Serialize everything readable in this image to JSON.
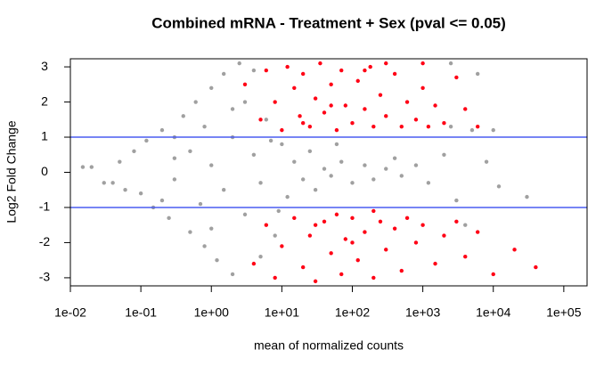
{
  "chart_data": {
    "type": "scatter",
    "title": "Combined mRNA - Treatment + Sex  (pval <= 0.05)",
    "x_label": "mean of normalized counts",
    "y_label": "Log2 Fold Change",
    "xlog": true,
    "xlim": [
      0.01,
      214000
    ],
    "ylim": [
      -3.23,
      3.23
    ],
    "xticks": [
      {
        "value": 0.01,
        "label": "1e-02"
      },
      {
        "value": 0.1,
        "label": "1e-01"
      },
      {
        "value": 1,
        "label": "1e+00"
      },
      {
        "value": 10,
        "label": "1e+01"
      },
      {
        "value": 100,
        "label": "1e+02"
      },
      {
        "value": 1000,
        "label": "1e+03"
      },
      {
        "value": 10000,
        "label": "1e+04"
      },
      {
        "value": 100000,
        "label": "1e+05"
      }
    ],
    "yticks": [
      -3,
      -2,
      -1,
      0,
      1,
      2,
      3
    ],
    "hlines": [
      1,
      -1
    ],
    "hline_color": "#4a5df0",
    "series": [
      {
        "color": "#a0a0a0",
        "x": [
          0.015,
          0.02,
          0.03,
          0.04,
          0.05,
          0.06,
          0.08,
          0.1,
          0.12,
          0.15,
          0.2,
          0.25,
          0.3,
          0.4,
          0.5,
          0.6,
          0.8,
          1,
          1.2,
          1.5,
          2,
          2.5,
          0.3,
          0.5,
          0.7,
          1,
          1.5,
          2,
          3,
          4,
          5,
          6,
          8,
          10,
          12,
          15,
          20,
          25,
          30,
          40,
          50,
          70,
          100,
          150,
          200,
          300,
          500,
          800,
          1200,
          2000,
          3000,
          5000,
          8000,
          12000,
          10000,
          30000,
          0.3,
          0.2,
          3,
          5,
          4,
          2,
          1,
          0.8,
          7,
          9,
          60,
          400,
          2500,
          4000,
          6000,
          2500
        ],
        "values": [
          0.15,
          0.15,
          -0.3,
          -0.3,
          0.3,
          -0.5,
          0.6,
          -0.6,
          0.9,
          -1.0,
          1.2,
          -1.3,
          0.4,
          1.6,
          -1.7,
          2.0,
          -2.1,
          2.4,
          -2.5,
          2.8,
          -2.9,
          3.1,
          -0.2,
          0.6,
          -0.9,
          0.2,
          -0.5,
          1.0,
          -1.2,
          0.5,
          -0.3,
          1.5,
          -1.8,
          0.8,
          -0.7,
          0.3,
          -0.2,
          0.6,
          -0.5,
          0.1,
          -0.1,
          0.3,
          -0.3,
          0.2,
          -0.2,
          0.1,
          -0.1,
          0.2,
          -0.3,
          0.5,
          -0.8,
          1.2,
          0.3,
          -0.4,
          1.2,
          -0.7,
          1.0,
          -0.8,
          2.0,
          -2.4,
          2.9,
          1.8,
          -1.6,
          1.3,
          0.9,
          -1.1,
          0.8,
          0.4,
          1.3,
          -1.5,
          2.8,
          3.1
        ]
      },
      {
        "color": "#ff0015",
        "x": [
          3,
          5,
          6,
          8,
          10,
          12,
          15,
          18,
          20,
          25,
          30,
          35,
          40,
          50,
          60,
          70,
          80,
          100,
          120,
          150,
          180,
          200,
          250,
          300,
          400,
          500,
          600,
          800,
          1000,
          1200,
          1500,
          2000,
          3000,
          4000,
          6000,
          1000,
          300,
          50,
          20,
          150,
          4,
          6,
          8,
          10,
          15,
          20,
          25,
          30,
          40,
          50,
          60,
          70,
          80,
          100,
          120,
          150,
          200,
          250,
          300,
          400,
          500,
          600,
          800,
          1000,
          1500,
          2000,
          3000,
          4000,
          6000,
          10000,
          20000,
          40000,
          200,
          100,
          30
        ],
        "values": [
          2.5,
          1.5,
          2.9,
          2.0,
          1.2,
          3.0,
          2.4,
          1.6,
          2.8,
          1.3,
          2.1,
          3.1,
          1.7,
          2.5,
          1.2,
          2.9,
          1.9,
          1.4,
          2.6,
          1.8,
          3.0,
          1.3,
          2.2,
          1.6,
          2.8,
          1.3,
          2.0,
          1.5,
          2.4,
          1.3,
          1.9,
          1.4,
          2.7,
          1.8,
          1.3,
          3.1,
          3.1,
          1.9,
          1.4,
          2.9,
          -2.6,
          -1.5,
          -3.0,
          -2.1,
          -1.3,
          -2.7,
          -1.8,
          -3.1,
          -1.4,
          -2.3,
          -1.2,
          -2.9,
          -1.9,
          -1.3,
          -2.5,
          -1.7,
          -3.0,
          -1.4,
          -2.2,
          -1.6,
          -2.8,
          -1.3,
          -2.0,
          -1.5,
          -2.6,
          -1.8,
          -1.4,
          -2.4,
          -1.7,
          -2.9,
          -2.2,
          -2.7,
          -1.1,
          -2.0,
          -1.5
        ]
      }
    ]
  }
}
